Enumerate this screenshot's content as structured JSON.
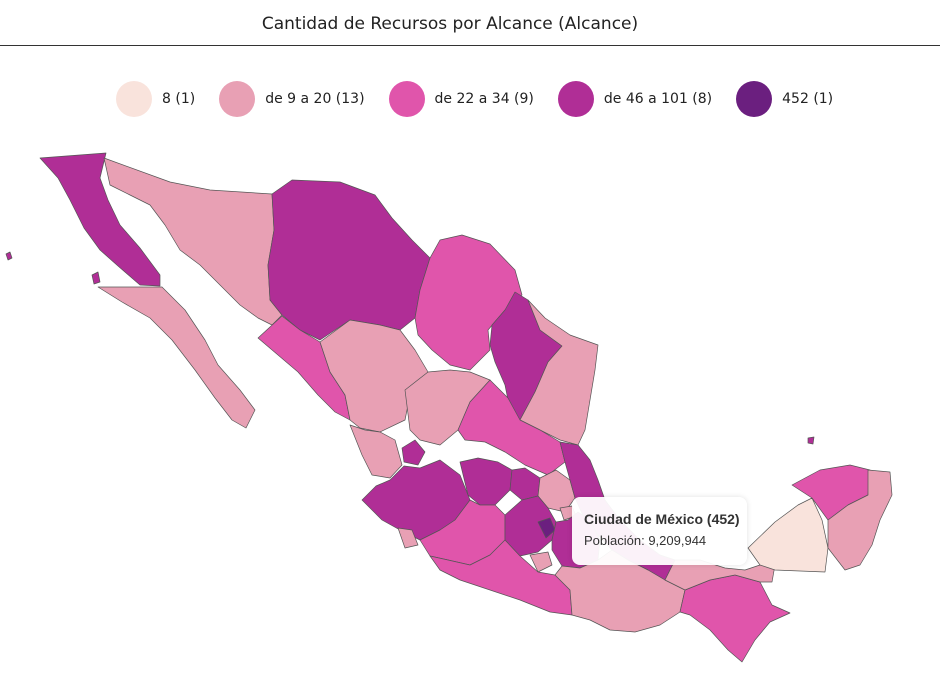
{
  "header": {
    "title": "Cantidad de  Recursos por Alcance (Alcance)"
  },
  "legend": [
    {
      "label": "8 (1)",
      "color": "#f9e3dc"
    },
    {
      "label": "de 9 a 20 (13)",
      "color": "#e8a0b4"
    },
    {
      "label": "de 22 a 34 (9)",
      "color": "#e055ab"
    },
    {
      "label": "de 46 a 101 (8)",
      "color": "#b02e96"
    },
    {
      "label": "452 (1)",
      "color": "#6b1f7f"
    }
  ],
  "tooltip": {
    "title": "Ciudad de México (452)",
    "line": "Población: 9,209,944"
  }
}
